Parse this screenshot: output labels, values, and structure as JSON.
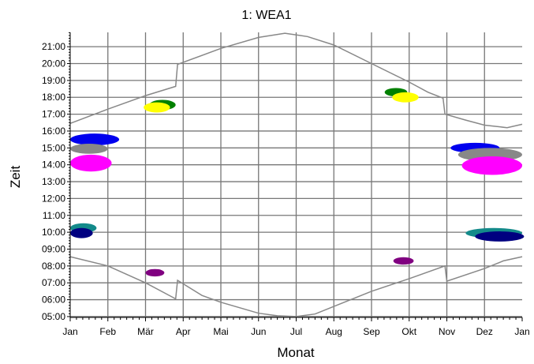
{
  "chart_data": {
    "type": "scatter",
    "title": "1: WEA1",
    "xlabel": "Monat",
    "ylabel": "Zeit",
    "x_categories": [
      "Jan",
      "Feb",
      "Mär",
      "Apr",
      "Mai",
      "Jun",
      "Jul",
      "Aug",
      "Sep",
      "Okt",
      "Nov",
      "Dez",
      "Jan"
    ],
    "y_ticks": [
      "05:00",
      "06:00",
      "07:00",
      "08:00",
      "09:00",
      "10:00",
      "11:00",
      "12:00",
      "13:00",
      "14:00",
      "15:00",
      "16:00",
      "17:00",
      "18:00",
      "19:00",
      "20:00",
      "21:00"
    ],
    "xlim_month": [
      0,
      12
    ],
    "ylim_hour": [
      4.95,
      21.85
    ],
    "grid": true,
    "sunset_curve": [
      [
        0,
        16.45
      ],
      [
        1,
        17.3
      ],
      [
        2,
        18.1
      ],
      [
        2.8,
        18.65
      ],
      [
        2.85,
        19.95
      ],
      [
        4,
        20.9
      ],
      [
        5,
        21.55
      ],
      [
        5.7,
        21.8
      ],
      [
        6.3,
        21.6
      ],
      [
        7,
        21.1
      ],
      [
        8,
        20.0
      ],
      [
        9,
        18.9
      ],
      [
        9.5,
        18.3
      ],
      [
        9.9,
        17.95
      ],
      [
        9.95,
        17.0
      ],
      [
        10.5,
        16.65
      ],
      [
        11,
        16.35
      ],
      [
        11.6,
        16.2
      ],
      [
        12,
        16.4
      ]
    ],
    "sunrise_curve": [
      [
        0,
        8.55
      ],
      [
        1,
        8.0
      ],
      [
        2,
        7.0
      ],
      [
        2.8,
        6.05
      ],
      [
        2.85,
        7.15
      ],
      [
        3.5,
        6.25
      ],
      [
        4,
        5.85
      ],
      [
        5,
        5.2
      ],
      [
        5.5,
        5.05
      ],
      [
        6,
        5.0
      ],
      [
        6.5,
        5.15
      ],
      [
        7,
        5.6
      ],
      [
        8,
        6.5
      ],
      [
        9,
        7.25
      ],
      [
        9.95,
        8.0
      ],
      [
        10,
        7.1
      ],
      [
        11,
        7.85
      ],
      [
        11.5,
        8.3
      ],
      [
        12,
        8.55
      ]
    ],
    "shadow_regions": [
      {
        "color": "#0000ee",
        "cx": 0.65,
        "cy": 15.5,
        "rx": 0.65,
        "ry": 0.35
      },
      {
        "color": "#888888",
        "cx": 0.5,
        "cy": 14.95,
        "rx": 0.5,
        "ry": 0.3
      },
      {
        "color": "#ff00ff",
        "cx": 0.55,
        "cy": 14.1,
        "rx": 0.55,
        "ry": 0.5
      },
      {
        "color": "#138a8a",
        "cx": 0.35,
        "cy": 10.25,
        "rx": 0.35,
        "ry": 0.28
      },
      {
        "color": "#000080",
        "cx": 0.3,
        "cy": 9.95,
        "rx": 0.3,
        "ry": 0.3
      },
      {
        "color": "#008000",
        "cx": 2.45,
        "cy": 17.55,
        "rx": 0.35,
        "ry": 0.3
      },
      {
        "color": "#ffff00",
        "cx": 2.3,
        "cy": 17.4,
        "rx": 0.35,
        "ry": 0.3
      },
      {
        "color": "#800080",
        "cx": 2.25,
        "cy": 7.6,
        "rx": 0.25,
        "ry": 0.22
      },
      {
        "color": "#008000",
        "cx": 8.65,
        "cy": 18.3,
        "rx": 0.3,
        "ry": 0.25
      },
      {
        "color": "#ffff00",
        "cx": 8.9,
        "cy": 18.0,
        "rx": 0.35,
        "ry": 0.3
      },
      {
        "color": "#800080",
        "cx": 8.85,
        "cy": 8.3,
        "rx": 0.27,
        "ry": 0.22
      },
      {
        "color": "#0000ee",
        "cx": 10.75,
        "cy": 15.0,
        "rx": 0.65,
        "ry": 0.3
      },
      {
        "color": "#888888",
        "cx": 11.15,
        "cy": 14.6,
        "rx": 0.85,
        "ry": 0.4
      },
      {
        "color": "#ff00ff",
        "cx": 11.2,
        "cy": 13.95,
        "rx": 0.8,
        "ry": 0.55
      },
      {
        "color": "#138a8a",
        "cx": 11.25,
        "cy": 9.95,
        "rx": 0.75,
        "ry": 0.3
      },
      {
        "color": "#000080",
        "cx": 11.4,
        "cy": 9.75,
        "rx": 0.65,
        "ry": 0.3
      }
    ],
    "colors": {
      "grid": "#777777",
      "curve": "#888888",
      "axis": "#000000"
    }
  }
}
